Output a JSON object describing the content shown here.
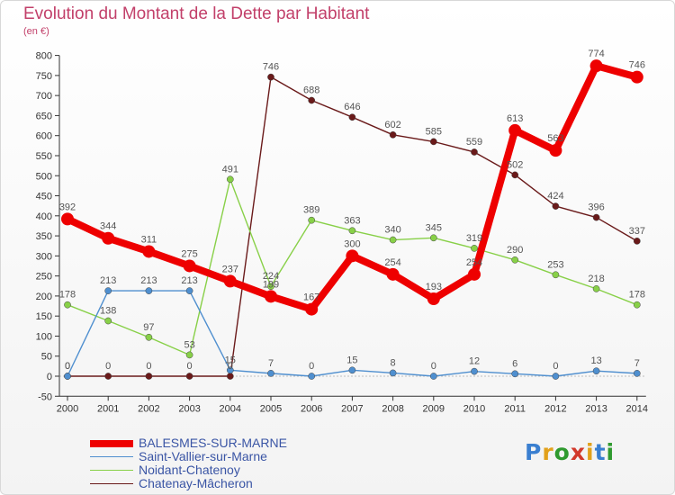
{
  "chart": {
    "title": "Evolution du Montant de la Dette par Habitant",
    "subtitle": "(en €)",
    "brand": "Proxiti"
  },
  "chart_data": {
    "type": "line",
    "x": [
      2000,
      2001,
      2002,
      2003,
      2004,
      2005,
      2006,
      2007,
      2008,
      2009,
      2010,
      2011,
      2012,
      2013,
      2014
    ],
    "ylim": [
      -50,
      800
    ],
    "yticks": [
      -50,
      0,
      50,
      100,
      150,
      200,
      250,
      300,
      350,
      400,
      450,
      500,
      550,
      600,
      650,
      700,
      750,
      800
    ],
    "grid": false,
    "legend_position": "bottom-left",
    "series": [
      {
        "name": "BALESMES-SUR-MARNE",
        "color": "#ee0000",
        "values": [
          392,
          344,
          311,
          275,
          237,
          199,
          167,
          300,
          254,
          193,
          254,
          613,
          563,
          774,
          746
        ]
      },
      {
        "name": "Saint-Vallier-sur-Marne",
        "color": "#4f8fcf",
        "values": [
          0,
          213,
          213,
          213,
          15,
          7,
          0,
          15,
          8,
          0,
          12,
          6,
          0,
          13,
          7
        ]
      },
      {
        "name": "Noidant-Chatenoy",
        "color": "#88d048",
        "values": [
          178,
          138,
          97,
          53,
          491,
          224,
          389,
          363,
          340,
          345,
          319,
          290,
          253,
          218,
          178
        ]
      },
      {
        "name": "Chatenay-Mâcheron",
        "color": "#6a1a1a",
        "values": [
          0,
          0,
          0,
          0,
          0,
          746,
          688,
          646,
          602,
          585,
          559,
          502,
          424,
          396,
          337
        ]
      }
    ]
  }
}
